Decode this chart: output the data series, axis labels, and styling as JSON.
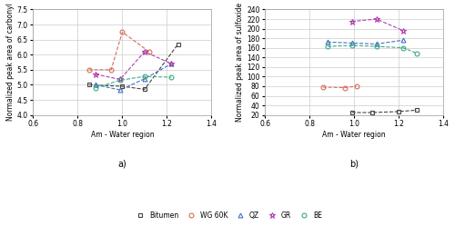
{
  "panel_a": {
    "xlabel": "Am - Water region",
    "ylabel": "Normalized peak area of carbonyl",
    "xlim": [
      0.6,
      1.4
    ],
    "ylim": [
      4.0,
      7.5
    ],
    "xticks": [
      0.6,
      0.8,
      1.0,
      1.2,
      1.4
    ],
    "yticks": [
      4.0,
      4.5,
      5.0,
      5.5,
      6.0,
      6.5,
      7.0,
      7.5
    ],
    "panel_label": "a)",
    "series": {
      "Bitumen": {
        "x": [
          0.85,
          1.0,
          1.1,
          1.25
        ],
        "y": [
          5.0,
          4.95,
          4.85,
          6.35
        ],
        "color": "#444444",
        "marker": "s",
        "markersize": 3.5
      },
      "WG 60K": {
        "x": [
          0.85,
          0.95,
          1.0,
          1.12
        ],
        "y": [
          5.5,
          5.5,
          6.75,
          6.1
        ],
        "color": "#d46f5a",
        "marker": "o",
        "markersize": 3.5
      },
      "QZ": {
        "x": [
          0.88,
          0.99,
          1.1,
          1.22
        ],
        "y": [
          5.0,
          4.83,
          5.2,
          5.7
        ],
        "color": "#4472c4",
        "marker": "^",
        "markersize": 3.5
      },
      "GR": {
        "x": [
          0.88,
          0.99,
          1.1,
          1.22
        ],
        "y": [
          5.35,
          5.18,
          6.1,
          5.7
        ],
        "color": "#b040b0",
        "marker": "*",
        "markersize": 4.5
      },
      "BE": {
        "x": [
          0.88,
          0.99,
          1.1,
          1.22
        ],
        "y": [
          4.9,
          5.15,
          5.28,
          5.25
        ],
        "color": "#3aaa88",
        "marker": "o",
        "markersize": 3.5
      }
    }
  },
  "panel_b": {
    "xlabel": "Am - Water region",
    "ylabel": "Normalized peak area of sulfoxide",
    "xlim": [
      0.6,
      1.4
    ],
    "ylim": [
      20,
      240
    ],
    "xticks": [
      0.6,
      0.8,
      1.0,
      1.2,
      1.4
    ],
    "yticks": [
      20,
      40,
      60,
      80,
      100,
      120,
      140,
      160,
      180,
      200,
      220,
      240
    ],
    "panel_label": "b)",
    "series": {
      "Bitumen": {
        "x": [
          0.99,
          1.08,
          1.2,
          1.28
        ],
        "y": [
          25,
          25,
          27,
          30
        ],
        "color": "#444444",
        "marker": "s",
        "markersize": 3.5
      },
      "WG 60K": {
        "x": [
          0.86,
          0.96,
          1.01
        ],
        "y": [
          78,
          77,
          80
        ],
        "color": "#d46f5a",
        "marker": "o",
        "markersize": 3.5
      },
      "QZ": {
        "x": [
          0.88,
          0.99,
          1.1,
          1.22
        ],
        "y": [
          172,
          170,
          168,
          176
        ],
        "color": "#4472c4",
        "marker": "^",
        "markersize": 3.5
      },
      "GR": {
        "x": [
          0.99,
          1.1,
          1.22
        ],
        "y": [
          215,
          220,
          196
        ],
        "color": "#b040b0",
        "marker": "*",
        "markersize": 4.5
      },
      "BE": {
        "x": [
          0.88,
          0.99,
          1.1,
          1.22,
          1.28
        ],
        "y": [
          163,
          165,
          163,
          160,
          149
        ],
        "color": "#3aaa88",
        "marker": "o",
        "markersize": 3.5
      }
    }
  },
  "legend_order": [
    "Bitumen",
    "WG 60K",
    "QZ",
    "GR",
    "BE"
  ],
  "background_color": "#ffffff",
  "grid_color": "#cccccc"
}
